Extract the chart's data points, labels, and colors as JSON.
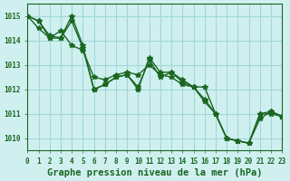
{
  "title": "Graphe pression niveau de la mer (hPa)",
  "background_color": "#d0f0f0",
  "grid_color": "#a0d8d8",
  "line_color": "#1a6620",
  "line_color2": "#2d8a30",
  "series": [
    [
      1015.0,
      1014.8,
      1014.2,
      1014.1,
      1015.0,
      1013.8,
      1012.0,
      1012.2,
      1012.5,
      1012.6,
      1012.0,
      1013.3,
      1012.7,
      1012.7,
      1012.4,
      1012.1,
      1012.1,
      1011.0,
      1010.0,
      1009.9,
      1009.8,
      1011.0,
      1011.1,
      1010.9
    ],
    [
      1015.0,
      1014.5,
      1014.1,
      1014.4,
      1013.8,
      1013.6,
      1012.5,
      1012.4,
      1012.6,
      1012.7,
      1012.6,
      1013.0,
      1012.6,
      1012.5,
      1012.2,
      1012.1,
      1011.6,
      1011.0,
      1010.0,
      1009.9,
      1009.8,
      1010.8,
      1011.1,
      1010.9
    ],
    [
      1015.0,
      1014.8,
      1014.1,
      1014.1,
      1014.8,
      1013.7,
      1012.0,
      1012.2,
      1012.5,
      1012.6,
      1012.1,
      1013.2,
      1012.5,
      1012.7,
      1012.3,
      1012.1,
      1011.5,
      1011.0,
      1010.0,
      1009.9,
      1009.8,
      1011.0,
      1011.0,
      1010.9
    ]
  ],
  "xlim": [
    0,
    23
  ],
  "ylim": [
    1009.5,
    1015.5
  ],
  "yticks": [
    1010,
    1011,
    1012,
    1013,
    1014,
    1015
  ],
  "xticks": [
    0,
    1,
    2,
    3,
    4,
    5,
    6,
    7,
    8,
    9,
    10,
    11,
    12,
    13,
    14,
    15,
    16,
    17,
    18,
    19,
    20,
    21,
    22,
    23
  ],
  "marker": "*",
  "markersize": 4,
  "linewidth": 1.0,
  "title_fontsize": 7.5,
  "tick_fontsize": 5.5
}
